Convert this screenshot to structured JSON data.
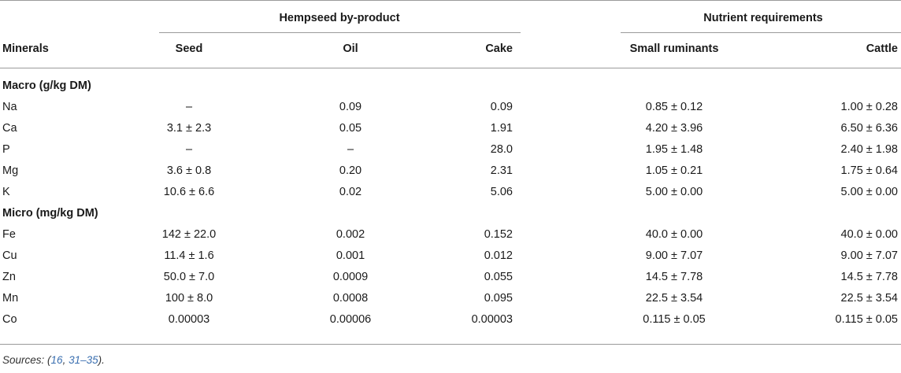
{
  "table": {
    "header": {
      "group_byproduct": "Hempseed by-product",
      "group_nutrient": "Nutrient requirements",
      "minerals": "Minerals",
      "seed": "Seed",
      "oil": "Oil",
      "cake": "Cake",
      "small_ruminants": "Small ruminants",
      "cattle": "Cattle"
    },
    "sections": [
      {
        "title": "Macro (g/kg DM)",
        "rows": [
          {
            "mineral": "Na",
            "seed": "–",
            "oil": "0.09",
            "cake": "0.09",
            "small_ruminants": "0.85 ± 0.12",
            "cattle": "1.00 ± 0.28"
          },
          {
            "mineral": "Ca",
            "seed": "3.1 ± 2.3",
            "oil": "0.05",
            "cake": "1.91",
            "small_ruminants": "4.20 ± 3.96",
            "cattle": "6.50 ± 6.36"
          },
          {
            "mineral": "P",
            "seed": "–",
            "oil": "–",
            "cake": "28.0",
            "small_ruminants": "1.95 ± 1.48",
            "cattle": "2.40 ± 1.98"
          },
          {
            "mineral": "Mg",
            "seed": "3.6 ± 0.8",
            "oil": "0.20",
            "cake": "2.31",
            "small_ruminants": "1.05 ± 0.21",
            "cattle": "1.75 ± 0.64"
          },
          {
            "mineral": "K",
            "seed": "10.6 ± 6.6",
            "oil": "0.02",
            "cake": "5.06",
            "small_ruminants": "5.00 ± 0.00",
            "cattle": "5.00 ± 0.00"
          }
        ]
      },
      {
        "title": "Micro (mg/kg DM)",
        "rows": [
          {
            "mineral": "Fe",
            "seed": "142 ± 22.0",
            "oil": "0.002",
            "cake": "0.152",
            "small_ruminants": "40.0 ± 0.00",
            "cattle": "40.0 ± 0.00"
          },
          {
            "mineral": "Cu",
            "seed": "11.4 ± 1.6",
            "oil": "0.001",
            "cake": "0.012",
            "small_ruminants": "9.00 ± 7.07",
            "cattle": "9.00 ± 7.07"
          },
          {
            "mineral": "Zn",
            "seed": "50.0 ± 7.0",
            "oil": "0.0009",
            "cake": "0.055",
            "small_ruminants": "14.5 ± 7.78",
            "cattle": "14.5 ± 7.78"
          },
          {
            "mineral": "Mn",
            "seed": "100 ± 8.0",
            "oil": "0.0008",
            "cake": "0.095",
            "small_ruminants": "22.5 ± 3.54",
            "cattle": "22.5 ± 3.54"
          },
          {
            "mineral": "Co",
            "seed": "0.00003",
            "oil": "0.00006",
            "cake": "0.00003",
            "small_ruminants": "0.115 ± 0.05",
            "cattle": "0.115 ± 0.05"
          }
        ]
      }
    ]
  },
  "sources": {
    "label": "Sources: (",
    "ref1": "16",
    "sep": ", ",
    "ref2": "31–35",
    "end": ")."
  }
}
